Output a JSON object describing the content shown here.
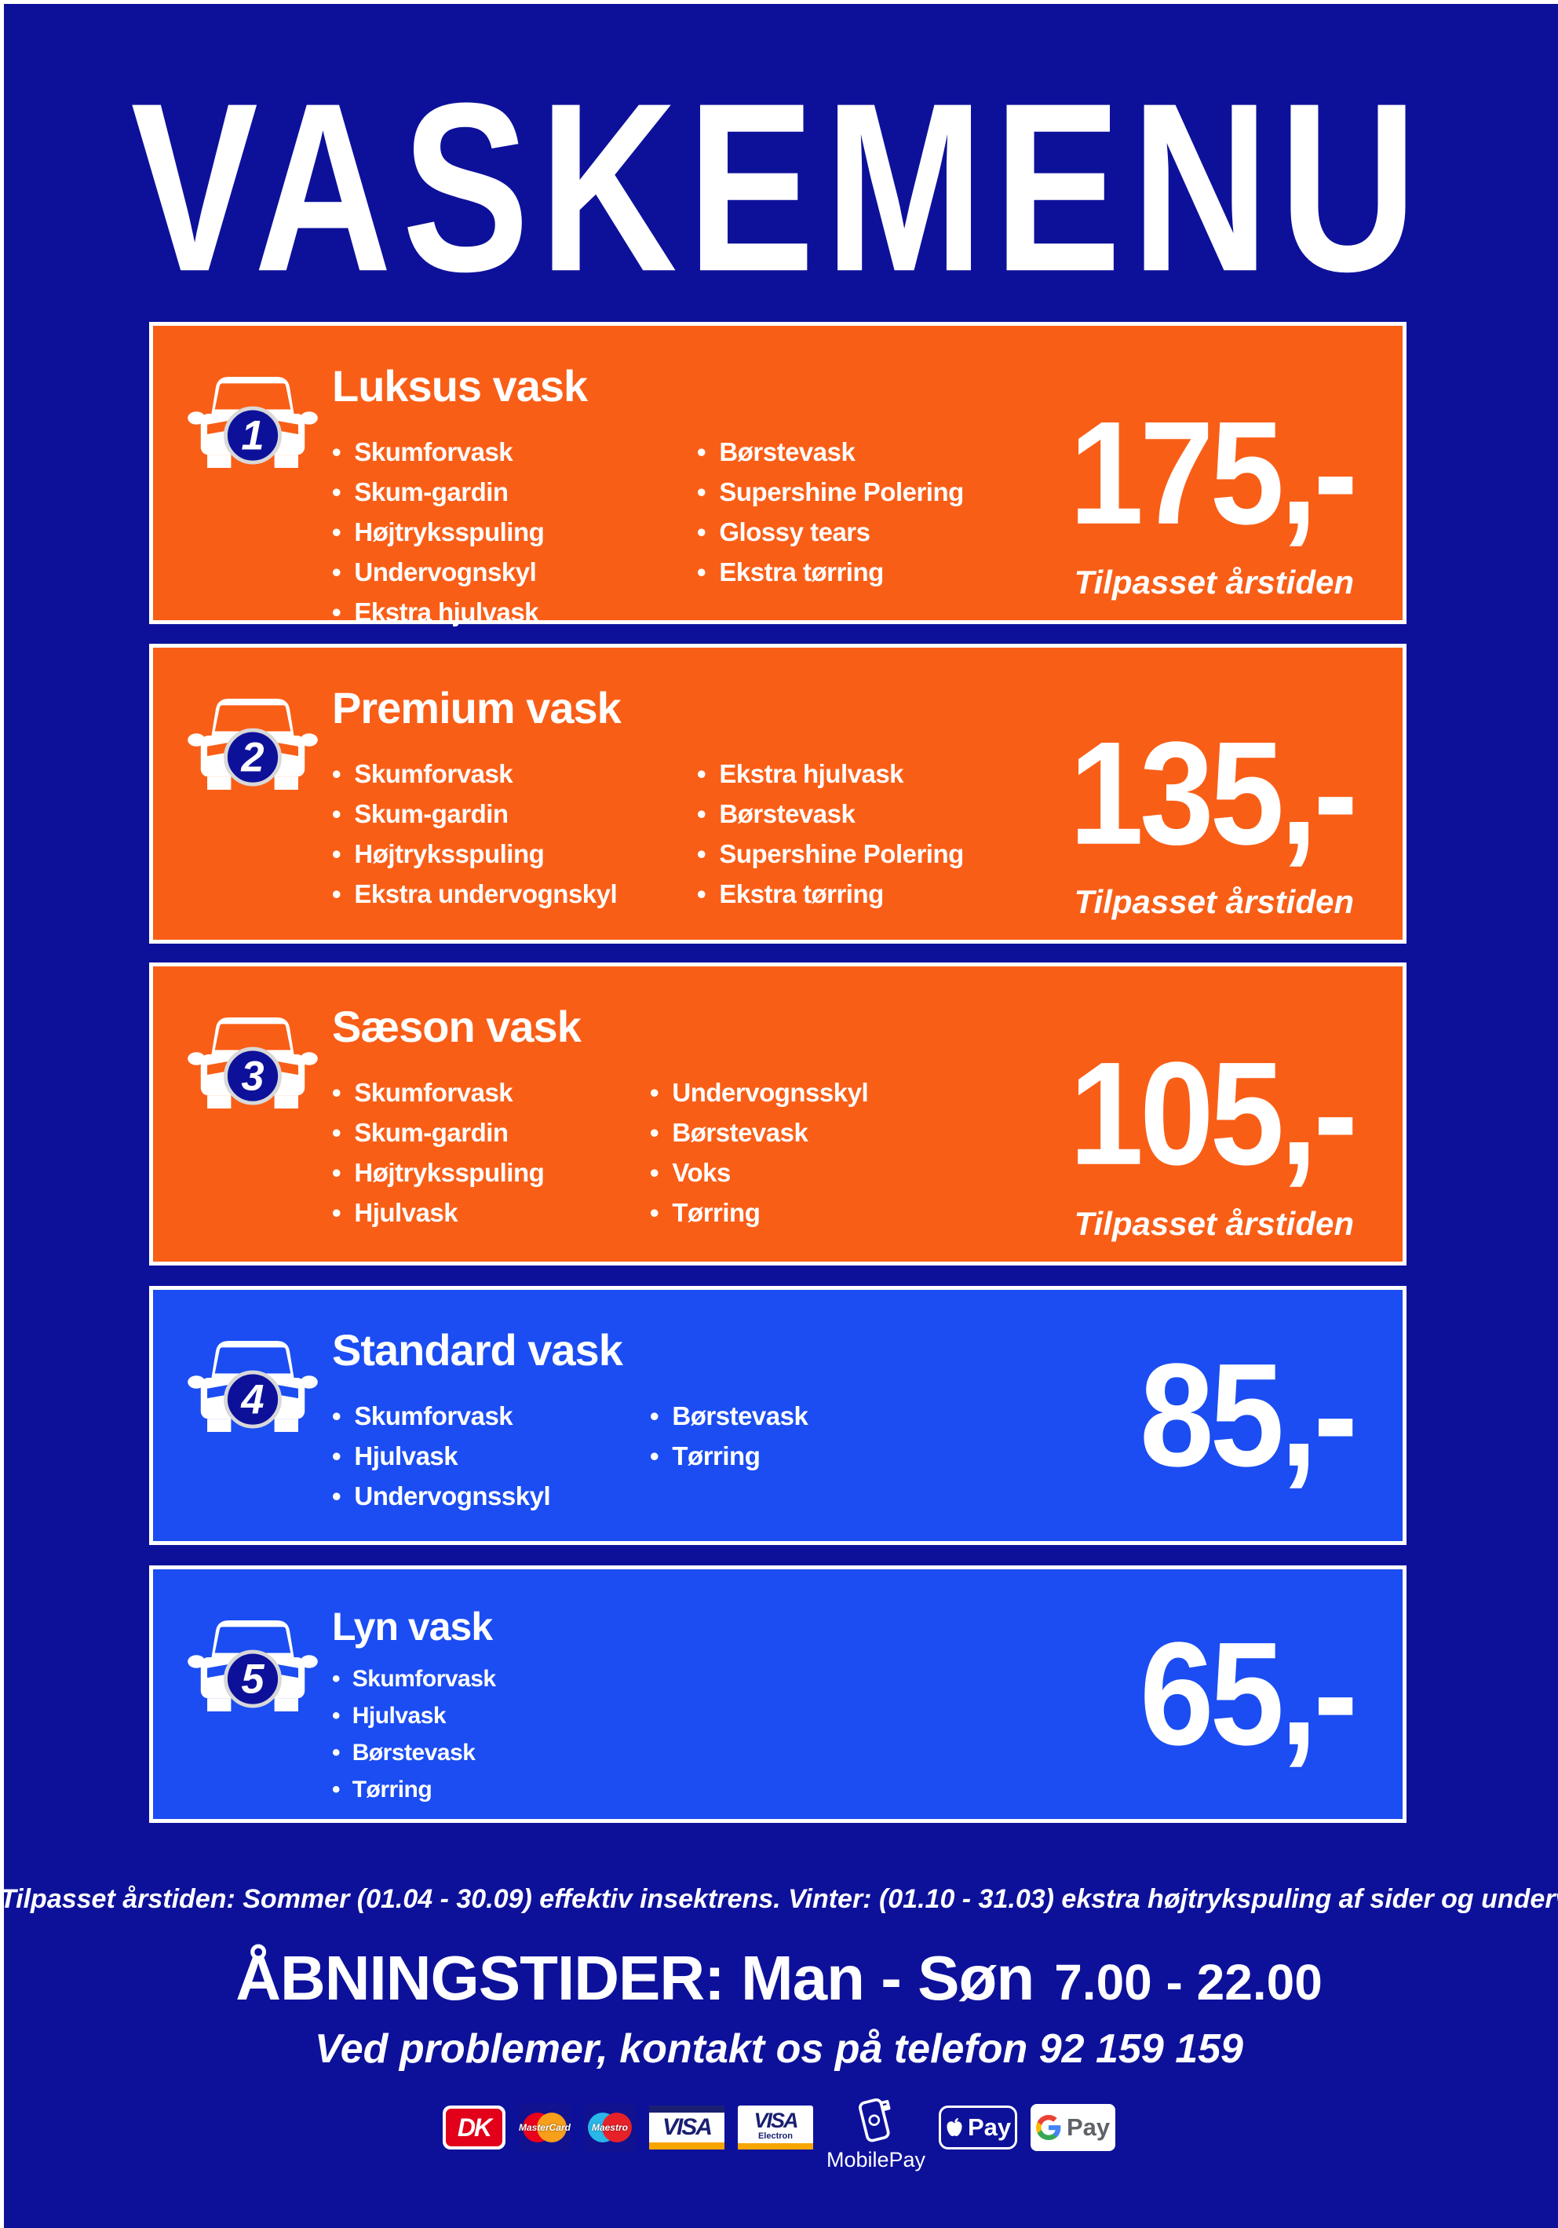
{
  "title": "VASKEMENU",
  "colors": {
    "background": "#0D119A",
    "card_orange": "#F95E17",
    "card_blue": "#1B4DF2",
    "white": "#FFFFFF"
  },
  "cards": [
    {
      "number": "1",
      "name": "Luksus vask",
      "style": "orange",
      "items_left": [
        "Skumforvask",
        "Skum-gardin",
        "Højtryksspuling",
        "Undervognskyl",
        "Ekstra hjulvask"
      ],
      "items_right": [
        "Børstevask",
        "Supershine Polering",
        "Glossy tears",
        "Ekstra tørring"
      ],
      "price": "175,-",
      "note": "Tilpasset årstiden"
    },
    {
      "number": "2",
      "name": "Premium vask",
      "style": "orange",
      "items_left": [
        "Skumforvask",
        "Skum-gardin",
        "Højtryksspuling",
        "Ekstra undervognskyl"
      ],
      "items_right": [
        "Ekstra hjulvask",
        "Børstevask",
        "Supershine Polering",
        "Ekstra tørring"
      ],
      "price": "135,-",
      "note": "Tilpasset årstiden"
    },
    {
      "number": "3",
      "name": "Sæson vask",
      "style": "orange",
      "items_left": [
        "Skumforvask",
        "Skum-gardin",
        "Højtryksspuling",
        "Hjulvask"
      ],
      "items_right": [
        "Undervognsskyl",
        "Børstevask",
        "Voks",
        "Tørring"
      ],
      "price": "105,-",
      "note": "Tilpasset årstiden"
    },
    {
      "number": "4",
      "name": "Standard vask",
      "style": "blue",
      "items_left": [
        "Skumforvask",
        "Hjulvask",
        "Undervognsskyl"
      ],
      "items_right": [
        "Børstevask",
        "Tørring"
      ],
      "price": "85,-",
      "note": ""
    },
    {
      "number": "5",
      "name": "Lyn vask",
      "style": "blue",
      "items_left": [
        "Skumforvask",
        "Hjulvask",
        "Børstevask",
        "Tørring"
      ],
      "items_right": [],
      "price": "65,-",
      "note": ""
    }
  ],
  "footnote": "Tilpasset årstiden: Sommer (01.04 - 30.09) effektiv insektrens. Vinter: (01.10 - 31.03) ekstra højtrykspuling af sider og undervogn.",
  "hours": {
    "label": "ÅBNINGSTIDER: Man - Søn",
    "time": "7.00 - 22.00",
    "contact": "Ved problemer, kontakt os på telefon 92 159 159"
  },
  "payments": {
    "dk": "DK",
    "mastercard": "MasterCard",
    "maestro": "Maestro",
    "visa": "VISA",
    "visa2": "VISA",
    "electron": "Electron",
    "mobilepay": "MobilePay",
    "apple_pay": "Pay",
    "google_pay": "Pay"
  }
}
